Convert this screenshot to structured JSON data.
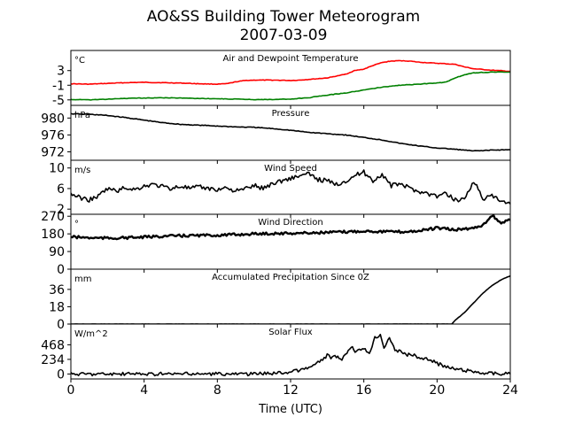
{
  "figure": {
    "title": "AO&SS Building Tower Meteorogram",
    "subtitle": "2007-03-09",
    "xlabel": "Time (UTC)",
    "xticks": [
      0,
      4,
      8,
      12,
      16,
      20,
      24
    ],
    "xlim": [
      0,
      24
    ]
  },
  "chart_data": [
    {
      "type": "line",
      "title": "Air and Dewpoint Temperature",
      "unit": "°C",
      "ylim": [
        -6.5,
        8.5
      ],
      "yticks": [
        3,
        -1,
        -5
      ],
      "series": [
        {
          "color": "#ff0000",
          "x": [
            0,
            1,
            2,
            3,
            4,
            5,
            6,
            7,
            8,
            8.5,
            9,
            9.5,
            10,
            11,
            12,
            12.5,
            13,
            14,
            15,
            15.5,
            16,
            16.5,
            17,
            17.5,
            18,
            18.5,
            19,
            20,
            21,
            21.5,
            22,
            23,
            24
          ],
          "y": [
            -0.6,
            -0.7,
            -0.5,
            -0.3,
            -0.2,
            -0.3,
            -0.4,
            -0.6,
            -0.7,
            -0.6,
            -0.1,
            0.3,
            0.4,
            0.4,
            0.3,
            0.4,
            0.6,
            1.0,
            2.0,
            3.0,
            3.4,
            4.4,
            5.2,
            5.6,
            5.7,
            5.6,
            5.3,
            5.0,
            4.7,
            4.0,
            3.5,
            3.1,
            2.8
          ]
        },
        {
          "color": "#008000",
          "x": [
            0,
            1,
            2,
            3,
            4,
            5,
            6,
            7,
            8,
            9,
            10,
            11,
            12,
            13,
            14,
            15,
            16,
            17,
            18,
            19,
            20,
            20.5,
            21,
            21.5,
            22,
            23,
            24
          ],
          "y": [
            -4.9,
            -5.0,
            -4.8,
            -4.6,
            -4.5,
            -4.4,
            -4.5,
            -4.6,
            -4.7,
            -4.8,
            -4.9,
            -4.9,
            -4.8,
            -4.4,
            -3.7,
            -3.1,
            -2.3,
            -1.5,
            -1.0,
            -0.7,
            -0.4,
            -0.1,
            1.0,
            1.9,
            2.4,
            2.6,
            2.6
          ]
        }
      ]
    },
    {
      "type": "line",
      "title": "Pressure",
      "unit": "hPa",
      "ylim": [
        970,
        983
      ],
      "yticks": [
        980,
        976,
        972
      ],
      "series": [
        {
          "color": "#000000",
          "x": [
            0,
            1,
            2,
            3,
            4,
            5,
            6,
            7,
            8,
            9,
            10,
            11,
            12,
            13,
            14,
            15,
            16,
            17,
            18,
            19,
            20,
            21,
            22,
            23,
            24
          ],
          "y": [
            981.0,
            980.9,
            980.6,
            980.1,
            979.5,
            978.9,
            978.5,
            978.3,
            978.1,
            977.9,
            977.8,
            977.5,
            977.1,
            976.6,
            976.3,
            976.0,
            975.4,
            974.8,
            974.0,
            973.4,
            972.9,
            972.6,
            972.2,
            972.4,
            972.5
          ]
        }
      ]
    },
    {
      "type": "line",
      "title": "Wind Speed",
      "unit": "m/s",
      "ylim": [
        1,
        11.5
      ],
      "yticks": [
        10,
        6,
        2
      ],
      "series": [
        {
          "color": "#000000",
          "x": [
            0,
            0.5,
            1,
            1.5,
            2,
            2.5,
            3,
            3.5,
            4,
            4.5,
            5,
            5.5,
            6,
            6.5,
            7,
            7.5,
            8,
            8.5,
            9,
            9.5,
            10,
            10.5,
            11,
            11.5,
            12,
            12.5,
            13,
            13.5,
            14,
            14.5,
            15,
            15.5,
            16,
            16.5,
            17,
            17.5,
            18,
            18.5,
            19,
            19.5,
            20,
            20.5,
            21,
            21.5,
            22,
            22.5,
            23,
            23.5,
            24
          ],
          "y": [
            5.0,
            4.2,
            3.8,
            4.5,
            6.0,
            5.5,
            6.2,
            5.8,
            6.5,
            6.8,
            6.4,
            6.0,
            6.5,
            6.0,
            6.3,
            6.0,
            5.8,
            6.2,
            5.5,
            5.9,
            6.6,
            6.0,
            7.0,
            7.5,
            8.0,
            8.5,
            8.8,
            7.8,
            7.5,
            6.8,
            7.5,
            8.5,
            9.2,
            7.5,
            8.8,
            6.5,
            7.0,
            6.0,
            5.5,
            5.0,
            4.5,
            5.0,
            3.8,
            4.0,
            7.5,
            4.0,
            4.5,
            3.5,
            3.0
          ]
        }
      ]
    },
    {
      "type": "line",
      "title": "Wind Direction",
      "unit": "°",
      "ylim": [
        0,
        280
      ],
      "yticks": [
        270,
        180,
        90,
        0
      ],
      "series": [
        {
          "color": "#000000",
          "x": [
            0,
            1,
            2,
            3,
            4,
            5,
            6,
            7,
            8,
            9,
            10,
            11,
            12,
            13,
            14,
            15,
            16,
            17,
            18,
            19,
            20,
            21,
            21.5,
            22,
            22.5,
            23,
            23.5,
            24
          ],
          "y": [
            165,
            160,
            158,
            160,
            163,
            168,
            170,
            172,
            173,
            176,
            180,
            182,
            183,
            185,
            187,
            190,
            195,
            192,
            190,
            195,
            210,
            200,
            205,
            210,
            225,
            275,
            235,
            250
          ]
        }
      ]
    },
    {
      "type": "line",
      "title": "Accumulated Precipitation Since 0Z",
      "unit": "mm",
      "ylim": [
        0,
        57
      ],
      "yticks": [
        36,
        18,
        0
      ],
      "series": [
        {
          "color": "#000000",
          "x": [
            0,
            20.8,
            21,
            21.5,
            22,
            22.5,
            23,
            23.5,
            24
          ],
          "y": [
            0,
            0,
            4,
            12,
            22,
            32,
            40,
            46,
            50
          ]
        }
      ]
    },
    {
      "type": "line",
      "title": "Solar Flux",
      "unit": "W/m^2",
      "ylim": [
        -80,
        800
      ],
      "yticks": [
        468,
        234,
        0
      ],
      "series": [
        {
          "color": "#000000",
          "x": [
            0,
            10,
            12,
            12.5,
            13,
            13.5,
            14,
            14.2,
            14.5,
            14.8,
            15,
            15.3,
            15.6,
            16,
            16.3,
            16.6,
            16.9,
            17.1,
            17.4,
            17.7,
            18,
            18.3,
            18.6,
            19,
            19.5,
            20,
            20.5,
            21,
            21.5,
            22,
            22.5,
            23,
            24
          ],
          "y": [
            0,
            0,
            30,
            60,
            100,
            180,
            300,
            260,
            280,
            200,
            320,
            430,
            350,
            400,
            340,
            580,
            640,
            420,
            600,
            360,
            390,
            300,
            320,
            260,
            240,
            170,
            110,
            80,
            60,
            40,
            20,
            10,
            0
          ]
        }
      ]
    }
  ]
}
